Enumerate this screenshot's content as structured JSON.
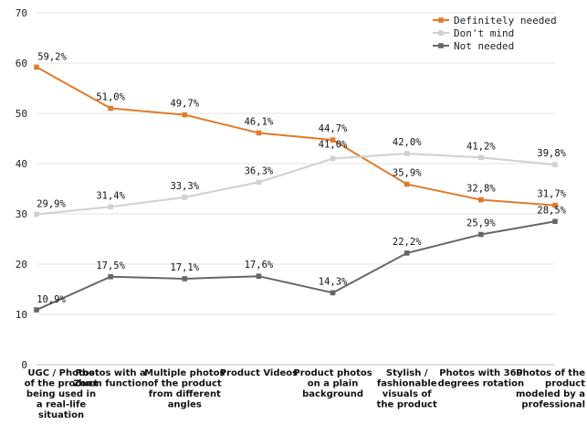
{
  "chart_data": {
    "type": "line",
    "title": "",
    "xlabel": "",
    "ylabel": "",
    "ylim": [
      0,
      70
    ],
    "yticks": [
      0,
      10,
      20,
      30,
      40,
      50,
      60,
      70
    ],
    "grid": true,
    "legend_position": "top-right",
    "categories": [
      [
        "UGC / Photos",
        "of the product",
        "being used in",
        "a real-life",
        "situation"
      ],
      [
        "Photos with a",
        "Zoom function"
      ],
      [
        "Multiple photos",
        "of the product",
        "from different",
        "angles"
      ],
      [
        "Product Videos"
      ],
      [
        "Product photos",
        "on a plain",
        "background"
      ],
      [
        "Stylish /",
        "fashionable",
        "visuals of",
        "the product"
      ],
      [
        "Photos with 360",
        "degrees rotation"
      ],
      [
        "Photos of the",
        "product",
        "modeled by a",
        "professional"
      ]
    ],
    "series": [
      {
        "name": "Definitely needed",
        "color": "#e07b2a",
        "values": [
          59.2,
          51.0,
          49.7,
          46.1,
          44.7,
          35.9,
          32.8,
          31.7
        ],
        "labels": [
          "59,2%",
          "51,0%",
          "49,7%",
          "46,1%",
          "44,7%",
          "35,9%",
          "32,8%",
          "31,7%"
        ]
      },
      {
        "name": "Don't mind",
        "color": "#d0d0d0",
        "values": [
          29.9,
          31.4,
          33.3,
          36.3,
          41.0,
          42.0,
          41.2,
          39.8
        ],
        "labels": [
          "29,9%",
          "31,4%",
          "33,3%",
          "36,3%",
          "41,0%",
          "42,0%",
          "41,2%",
          "39,8%"
        ]
      },
      {
        "name": "Not needed",
        "color": "#666666",
        "values": [
          10.9,
          17.5,
          17.1,
          17.6,
          14.3,
          22.2,
          25.9,
          28.5
        ],
        "labels": [
          "10,9%",
          "17,5%",
          "17,1%",
          "17,6%",
          "14,3%",
          "22,2%",
          "25,9%",
          "28,5%"
        ]
      }
    ]
  }
}
